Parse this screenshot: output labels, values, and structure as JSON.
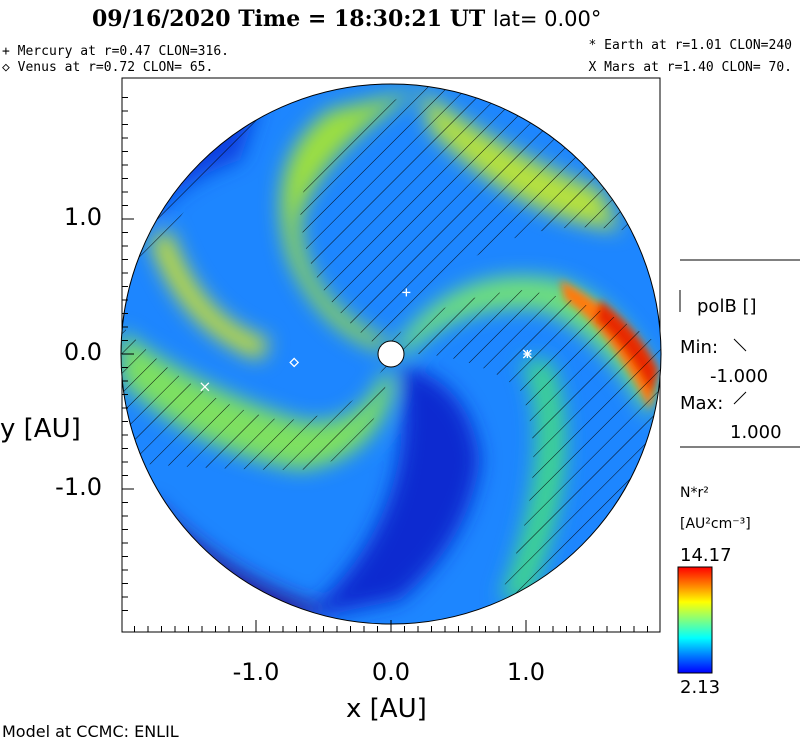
{
  "header": {
    "title_main": "09/16/2020 Time = 18:30:21 UT",
    "title_lat": "lat= 0.00°"
  },
  "planets": [
    {
      "line": "+ Mercury at r=0.47 CLON=316.",
      "symbol": "+",
      "name": "Mercury",
      "r": 0.47,
      "clon": 316
    },
    {
      "line": "◇ Venus at r=0.72 CLON= 65.",
      "symbol": "diamond",
      "name": "Venus",
      "r": 0.72,
      "clon": 65
    },
    {
      "line": "* Earth at  r=1.01 CLON=240",
      "symbol": "*",
      "name": "Earth",
      "r": 1.01,
      "clon": 240
    },
    {
      "line": "X Mars at r=1.40 CLON= 70.",
      "symbol": "x",
      "name": "Mars",
      "r": 1.4,
      "clon": 70
    }
  ],
  "legend": {
    "polarity_label": "polB []",
    "min_label": "Min:",
    "min_value": "-1.000",
    "max_label": "Max:",
    "max_value": "1.000",
    "colorbar_title": "N*r²",
    "colorbar_units": "[AU²cm⁻³]",
    "colorbar_max": "14.17",
    "colorbar_min": "2.13",
    "colorbar_colors": [
      "#ff0000",
      "#ff8000",
      "#ffff00",
      "#80ff80",
      "#00ffff",
      "#0080ff",
      "#0000ff"
    ]
  },
  "footer": {
    "credit": "Model at CCMC: ENLIL"
  },
  "chart_data": {
    "type": "heatmap",
    "projection": "polar-equatorial",
    "title": "09/16/2020 Time = 18:30:21 UT lat= 0.00°",
    "xlabel": "x [AU]",
    "ylabel": "y [AU]",
    "xlim": [
      -2.0,
      2.0
    ],
    "ylim": [
      -2.0,
      2.0
    ],
    "x_ticks": [
      -1.0,
      0.0,
      1.0
    ],
    "x_tick_labels": [
      "-1.0",
      "0.0",
      "1.0"
    ],
    "y_ticks": [
      1.0,
      0.0,
      -1.0
    ],
    "y_tick_labels": [
      "1.0",
      "0.0",
      "-1.0"
    ],
    "domain_radius_au": 2.0,
    "inner_radius_au": 0.1,
    "variable": "N*r²",
    "units": "AU²cm⁻³",
    "value_min": 2.13,
    "value_max": 14.17,
    "overlay": "polB []",
    "overlay_min": -1.0,
    "overlay_max": 1.0
  }
}
